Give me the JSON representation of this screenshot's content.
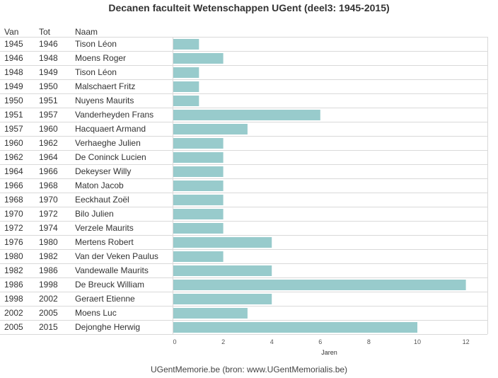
{
  "title": "Decanen faculteit Wetenschappen UGent (deel3: 1945-2015)",
  "columns": {
    "van": "Van",
    "tot": "Tot",
    "naam": "Naam"
  },
  "footer": "UGentMemorie.be (bron: www.UGentMemorialis.be)",
  "colors": {
    "bar": "#98cbcc",
    "grid": "#d9d9d9"
  },
  "chart_data": {
    "type": "bar",
    "orientation": "horizontal",
    "xlabel": "Jaren",
    "xlim": [
      0,
      13
    ],
    "xticks": [
      0,
      2,
      4,
      6,
      8,
      10,
      12
    ],
    "grid": true,
    "rows": [
      {
        "van": "1945",
        "tot": "1946",
        "naam": "Tison Léon",
        "value": 1
      },
      {
        "van": "1946",
        "tot": "1948",
        "naam": "Moens Roger",
        "value": 2
      },
      {
        "van": "1948",
        "tot": "1949",
        "naam": "Tison Léon",
        "value": 1
      },
      {
        "van": "1949",
        "tot": "1950",
        "naam": "Malschaert Fritz",
        "value": 1
      },
      {
        "van": "1950",
        "tot": "1951",
        "naam": "Nuyens Maurits",
        "value": 1
      },
      {
        "van": "1951",
        "tot": "1957",
        "naam": "Vanderheyden Frans",
        "value": 6
      },
      {
        "van": "1957",
        "tot": "1960",
        "naam": "Hacquaert Armand",
        "value": 3
      },
      {
        "van": "1960",
        "tot": "1962",
        "naam": "Verhaeghe Julien",
        "value": 2
      },
      {
        "van": "1962",
        "tot": "1964",
        "naam": "De Coninck Lucien",
        "value": 2
      },
      {
        "van": "1964",
        "tot": "1966",
        "naam": "Dekeyser Willy",
        "value": 2
      },
      {
        "van": "1966",
        "tot": "1968",
        "naam": "Maton Jacob",
        "value": 2
      },
      {
        "van": "1968",
        "tot": "1970",
        "naam": "Eeckhaut Zoël",
        "value": 2
      },
      {
        "van": "1970",
        "tot": "1972",
        "naam": "Bilo Julien",
        "value": 2
      },
      {
        "van": "1972",
        "tot": "1974",
        "naam": "Verzele Maurits",
        "value": 2
      },
      {
        "van": "1976",
        "tot": "1980",
        "naam": "Mertens Robert",
        "value": 4
      },
      {
        "van": "1980",
        "tot": "1982",
        "naam": "Van der Veken Paulus",
        "value": 2
      },
      {
        "van": "1982",
        "tot": "1986",
        "naam": "Vandewalle Maurits",
        "value": 4
      },
      {
        "van": "1986",
        "tot": "1998",
        "naam": "De Breuck William",
        "value": 12
      },
      {
        "van": "1998",
        "tot": "2002",
        "naam": "Geraert Etienne",
        "value": 4
      },
      {
        "van": "2002",
        "tot": "2005",
        "naam": "Moens Luc",
        "value": 3
      },
      {
        "van": "2005",
        "tot": "2015",
        "naam": "Dejonghe Herwig",
        "value": 10
      }
    ]
  }
}
